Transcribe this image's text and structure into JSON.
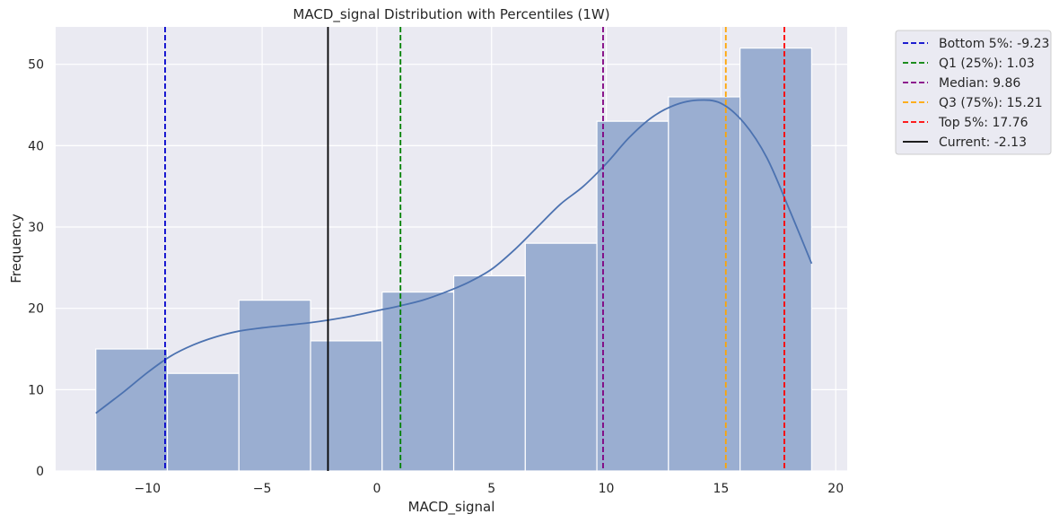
{
  "chart_data": {
    "type": "histogram",
    "title": "MACD_signal Distribution with Percentiles (1W)",
    "xlabel": "MACD_signal",
    "ylabel": "Frequency",
    "xlim": [
      -14.0,
      20.5
    ],
    "ylim": [
      0,
      54.6
    ],
    "xticks": [
      -10,
      -5,
      0,
      5,
      10,
      15,
      20
    ],
    "yticks": [
      0,
      10,
      20,
      30,
      40,
      50
    ],
    "grid": true,
    "legend_position": "outside-top-right",
    "colors": {
      "background": "#eaeaf2",
      "grid": "#ffffff",
      "bar_fill": "#9aaed1",
      "bar_edge": "#ffffff",
      "kde_line": "#4c72b0",
      "text": "#262626"
    },
    "bins": [
      {
        "x0": -12.25,
        "x1": -9.13,
        "count": 15
      },
      {
        "x0": -9.13,
        "x1": -6.01,
        "count": 12
      },
      {
        "x0": -6.01,
        "x1": -2.89,
        "count": 21
      },
      {
        "x0": -2.89,
        "x1": 0.23,
        "count": 16
      },
      {
        "x0": 0.23,
        "x1": 3.35,
        "count": 22
      },
      {
        "x0": 3.35,
        "x1": 6.47,
        "count": 24
      },
      {
        "x0": 6.47,
        "x1": 9.59,
        "count": 28
      },
      {
        "x0": 9.59,
        "x1": 12.71,
        "count": 43
      },
      {
        "x0": 12.71,
        "x1": 15.83,
        "count": 46
      },
      {
        "x0": 15.83,
        "x1": 18.95,
        "count": 52
      }
    ],
    "kde": [
      [
        -12.25,
        7.1
      ],
      [
        -11.0,
        9.8
      ],
      [
        -10.0,
        12.1
      ],
      [
        -9.0,
        14.1
      ],
      [
        -8.0,
        15.5
      ],
      [
        -7.0,
        16.5
      ],
      [
        -6.0,
        17.2
      ],
      [
        -5.0,
        17.6
      ],
      [
        -4.0,
        17.9
      ],
      [
        -3.0,
        18.2
      ],
      [
        -2.0,
        18.6
      ],
      [
        -1.0,
        19.1
      ],
      [
        0.0,
        19.7
      ],
      [
        1.0,
        20.3
      ],
      [
        2.0,
        21.0
      ],
      [
        3.0,
        22.0
      ],
      [
        4.0,
        23.2
      ],
      [
        5.0,
        24.8
      ],
      [
        6.0,
        27.2
      ],
      [
        7.0,
        30.0
      ],
      [
        8.0,
        32.8
      ],
      [
        9.0,
        35.0
      ],
      [
        10.0,
        37.8
      ],
      [
        11.0,
        41.0
      ],
      [
        12.0,
        43.5
      ],
      [
        13.0,
        45.0
      ],
      [
        14.0,
        45.6
      ],
      [
        15.0,
        45.2
      ],
      [
        16.0,
        42.8
      ],
      [
        17.0,
        38.5
      ],
      [
        18.0,
        32.0
      ],
      [
        18.95,
        25.5
      ]
    ],
    "reference_lines": [
      {
        "label": "Bottom 5%: -9.23",
        "x": -9.23,
        "color": "#0000cc",
        "style": "dashed"
      },
      {
        "label": "Q1 (25%): 1.03",
        "x": 1.03,
        "color": "#008000",
        "style": "dashed"
      },
      {
        "label": "Median: 9.86",
        "x": 9.86,
        "color": "#800080",
        "style": "dashed"
      },
      {
        "label": "Q3 (75%): 15.21",
        "x": 15.21,
        "color": "#ffa500",
        "style": "dashed"
      },
      {
        "label": "Top 5%: 17.76",
        "x": 17.76,
        "color": "#ff0000",
        "style": "dashed"
      },
      {
        "label": "Current: -2.13",
        "x": -2.13,
        "color": "#000000",
        "style": "solid"
      }
    ]
  }
}
